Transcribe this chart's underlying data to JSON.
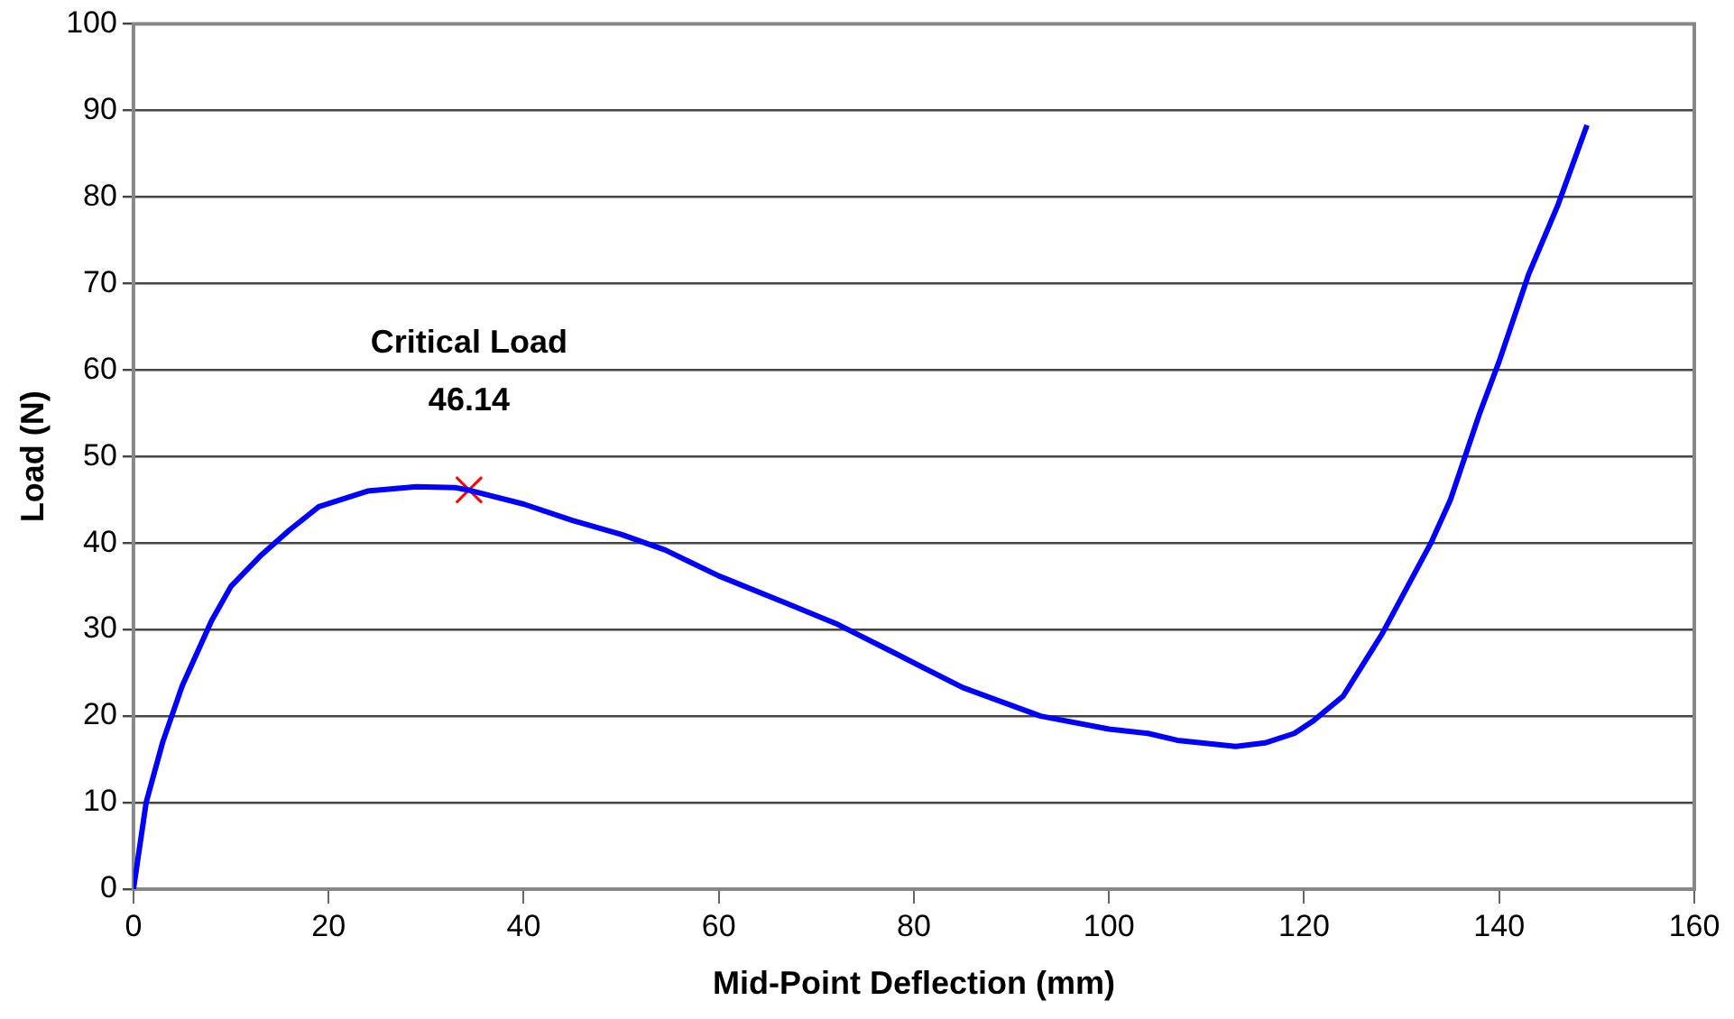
{
  "chart_data": {
    "type": "line",
    "xlabel": "Mid-Point Deflection (mm)",
    "ylabel": "Load (N)",
    "xlim": [
      0,
      160
    ],
    "xticks": [
      0,
      20,
      40,
      60,
      80,
      100,
      120,
      140,
      160
    ],
    "ylim": [
      0,
      100
    ],
    "yticks": [
      0,
      10,
      20,
      30,
      40,
      50,
      60,
      70,
      80,
      90,
      100
    ],
    "grid": "y",
    "legend": false,
    "marker": "none",
    "series": [
      {
        "color": "#0000ff",
        "x": [
          0,
          1.3,
          3,
          5,
          8,
          10,
          13,
          16,
          19,
          24,
          29,
          33,
          34.4,
          40,
          45,
          50,
          54.5,
          60,
          67,
          72,
          78,
          85,
          93,
          100,
          104,
          107,
          113,
          116,
          119,
          121,
          124,
          128,
          133,
          135,
          138,
          140,
          143,
          146,
          149
        ],
        "values": [
          0,
          10,
          17,
          23.5,
          31,
          35,
          38.5,
          41.5,
          44.2,
          46,
          46.5,
          46.4,
          46.1,
          44.5,
          42.6,
          41,
          39.2,
          36.2,
          33,
          30.7,
          27.3,
          23.3,
          20,
          18.5,
          18,
          17.2,
          16.5,
          16.9,
          18,
          19.5,
          22.3,
          29.5,
          40,
          45,
          55,
          61,
          71,
          79,
          88.3
        ]
      },
      {
        "type": "scatter",
        "marker": "cross",
        "color": "#ff0000",
        "x": [
          34.4
        ],
        "values": [
          46.14
        ]
      }
    ],
    "annotations": [
      {
        "text": "Critical Load\n46.14",
        "x": 34.4,
        "y": 46.14
      }
    ]
  }
}
